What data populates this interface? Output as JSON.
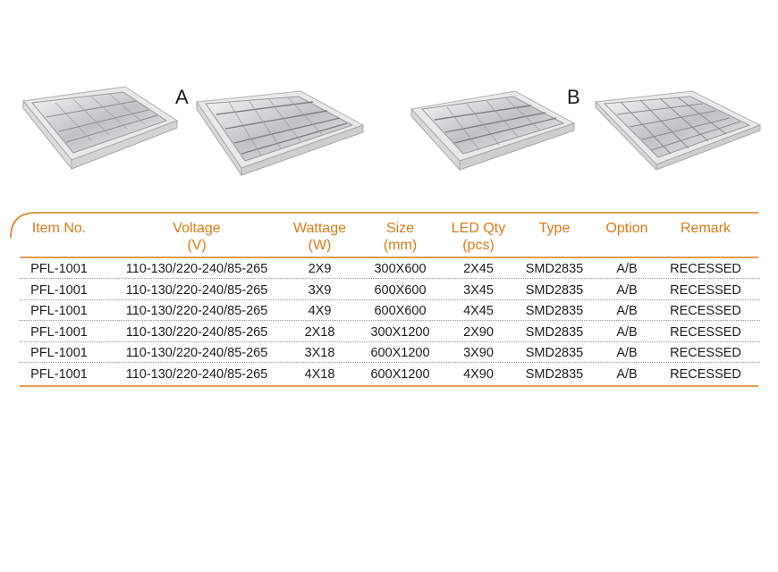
{
  "variants": [
    {
      "letter": "A"
    },
    {
      "letter": "B"
    }
  ],
  "table": {
    "headers": [
      {
        "line1": "Item No.",
        "line2": ""
      },
      {
        "line1": "Voltage",
        "line2": "(V)"
      },
      {
        "line1": "Wattage",
        "line2": "(W)"
      },
      {
        "line1": "Size",
        "line2": "(mm)"
      },
      {
        "line1": "LED Qty",
        "line2": "(pcs)"
      },
      {
        "line1": "Type",
        "line2": ""
      },
      {
        "line1": "Option",
        "line2": ""
      },
      {
        "line1": "Remark",
        "line2": ""
      }
    ],
    "rows": [
      [
        "PFL-1001",
        "110-130/220-240/85-265",
        "2X9",
        "300X600",
        "2X45",
        "SMD2835",
        "A/B",
        "RECESSED"
      ],
      [
        "PFL-1001",
        "110-130/220-240/85-265",
        "3X9",
        "600X600",
        "3X45",
        "SMD2835",
        "A/B",
        "RECESSED"
      ],
      [
        "PFL-1001",
        "110-130/220-240/85-265",
        "4X9",
        "600X600",
        "4X45",
        "SMD2835",
        "A/B",
        "RECESSED"
      ],
      [
        "PFL-1001",
        "110-130/220-240/85-265",
        "2X18",
        "300X1200",
        "2X90",
        "SMD2835",
        "A/B",
        "RECESSED"
      ],
      [
        "PFL-1001",
        "110-130/220-240/85-265",
        "3X18",
        "600X1200",
        "3X90",
        "SMD2835",
        "A/B",
        "RECESSED"
      ],
      [
        "PFL-1001",
        "110-130/220-240/85-265",
        "4X18",
        "600X1200",
        "4X90",
        "SMD2835",
        "A/B",
        "RECESSED"
      ]
    ]
  },
  "colors": {
    "accent": "#e07a1a",
    "text": "#1d1d1d"
  }
}
